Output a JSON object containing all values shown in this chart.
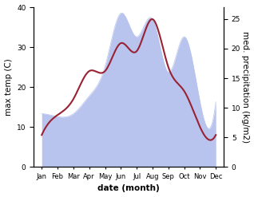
{
  "months": [
    "Jan",
    "Feb",
    "Mar",
    "Apr",
    "May",
    "Jun",
    "Jul",
    "Aug",
    "Sep",
    "Oct",
    "Nov",
    "Dec"
  ],
  "temp": [
    8,
    13,
    17,
    24,
    24,
    31,
    29,
    37,
    25,
    19,
    10,
    8
  ],
  "precip": [
    9,
    8.5,
    9,
    12,
    17,
    26,
    22,
    25,
    16,
    22,
    11,
    11
  ],
  "temp_color": "#992233",
  "precip_color": "#b8c4ee",
  "ylabel_left": "max temp (C)",
  "ylabel_right": "med. precipitation (kg/m2)",
  "xlabel": "date (month)",
  "ylim_left": [
    0,
    40
  ],
  "ylim_right": [
    0,
    27
  ],
  "label_fontsize": 7.5
}
